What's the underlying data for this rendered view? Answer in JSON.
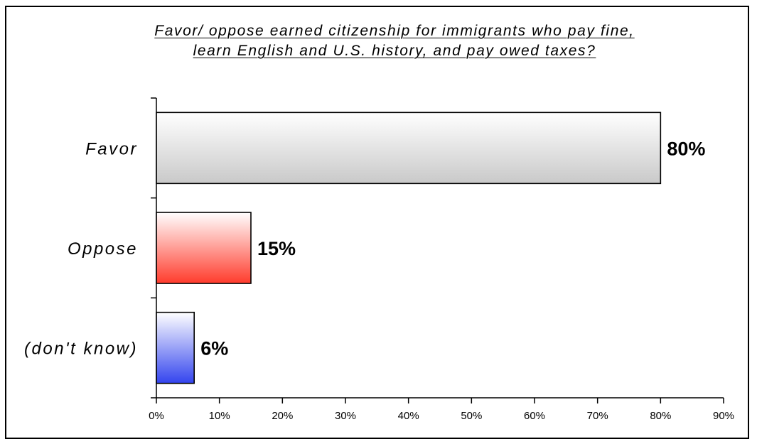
{
  "colors": {
    "favor": "#c9c9c9",
    "oppose": "#ff3b2c",
    "dont_know": "#3344ee"
  },
  "chart_data": {
    "type": "bar",
    "orientation": "horizontal",
    "title_lines": [
      "Favor/ oppose earned citizenship for immigrants who pay fine,",
      "learn English and U.S. history, and pay owed taxes?"
    ],
    "categories": [
      "Favor",
      "Oppose",
      "(don't know)"
    ],
    "values": [
      80,
      15,
      6
    ],
    "value_labels": [
      "80%",
      "15%",
      "6%"
    ],
    "xlim": [
      0,
      90
    ],
    "xticks": [
      0,
      10,
      20,
      30,
      40,
      50,
      60,
      70,
      80,
      90
    ],
    "xtick_labels": [
      "0%",
      "10%",
      "20%",
      "30%",
      "40%",
      "50%",
      "60%",
      "70%",
      "80%",
      "90%"
    ],
    "grid": false,
    "legend": "none"
  }
}
